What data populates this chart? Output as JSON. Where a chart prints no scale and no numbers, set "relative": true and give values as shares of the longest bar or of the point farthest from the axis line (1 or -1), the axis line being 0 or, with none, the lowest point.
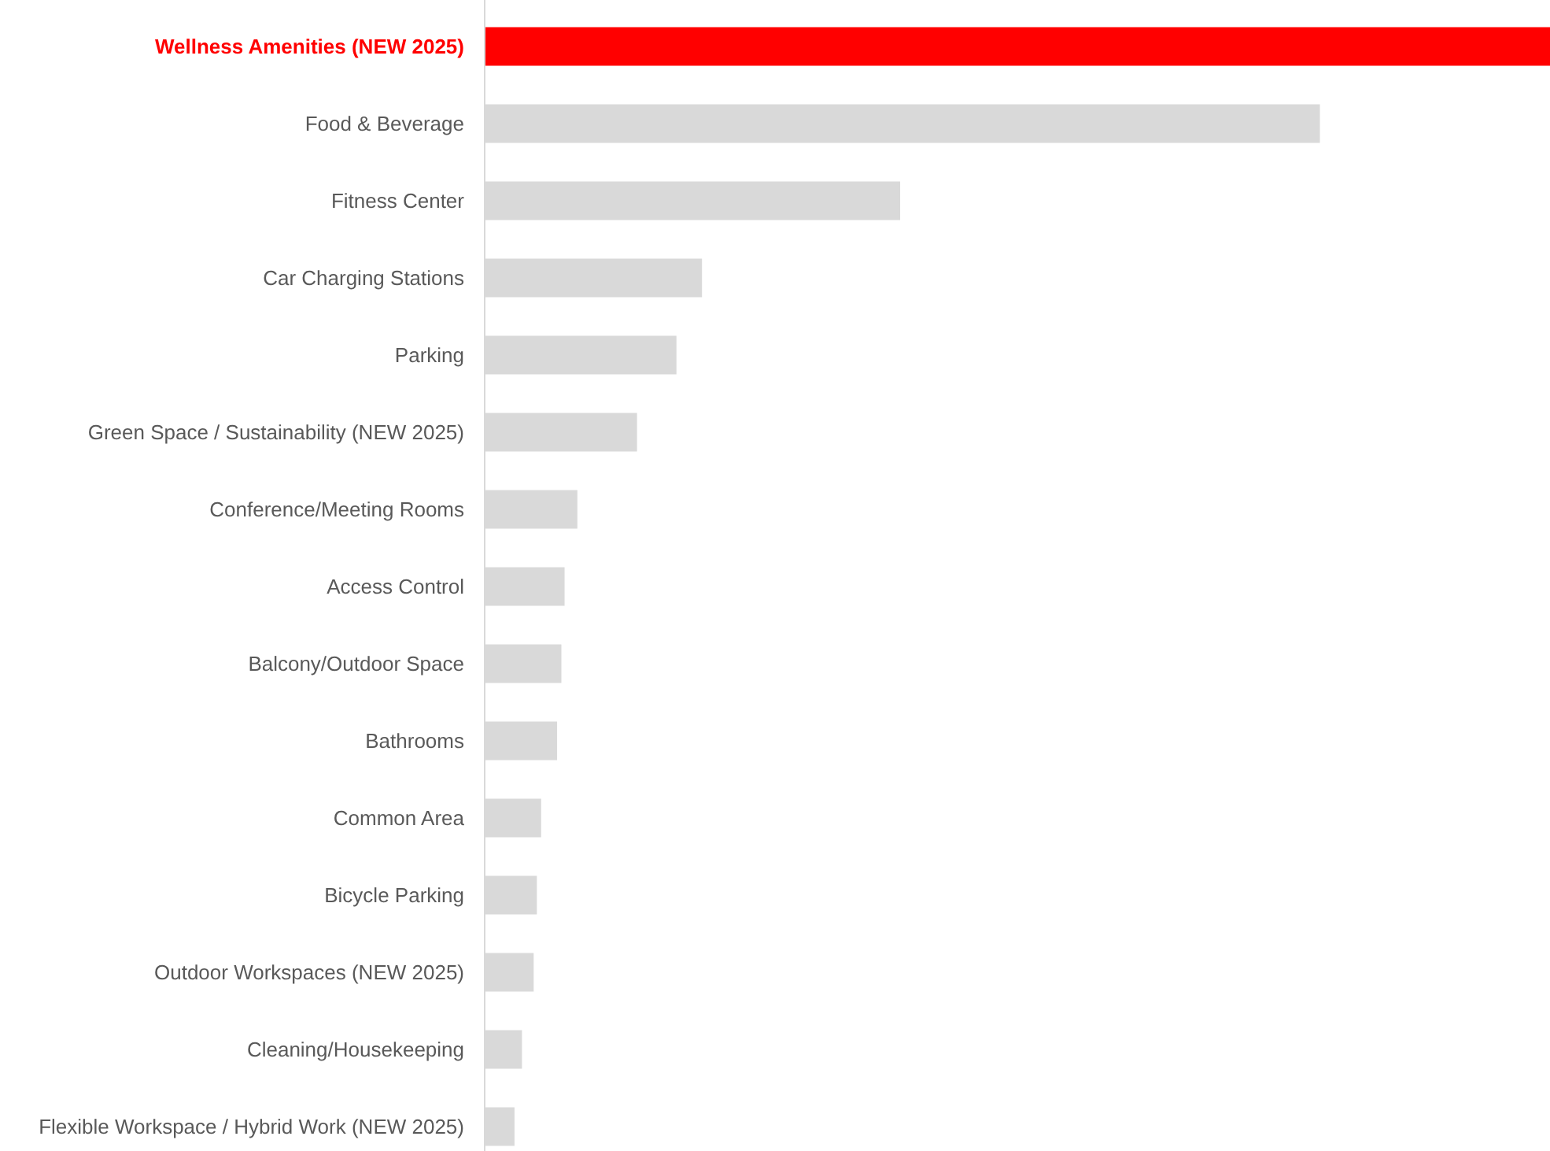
{
  "chart_data": {
    "type": "bar",
    "orientation": "horizontal",
    "relative": true,
    "categories": [
      "Wellness Amenities (NEW 2025)",
      "Food & Beverage",
      "Fitness Center",
      "Car Charging Stations",
      "Parking",
      "Green Space / Sustainability (NEW 2025)",
      "Conference/Meeting Rooms",
      "Access Control",
      "Balcony/Outdoor Space",
      "Bathrooms",
      "Common Area",
      "Bicycle Parking",
      "Outdoor Workspaces (NEW 2025)",
      "Cleaning/Housekeeping",
      "Flexible Workspace / Hybrid Work (NEW 2025)"
    ],
    "values": [
      1,
      0.784,
      0.39,
      0.204,
      0.18,
      0.143,
      0.087,
      0.075,
      0.072,
      0.068,
      0.053,
      0.049,
      0.046,
      0.035,
      0.028
    ],
    "color": "#d9d9d9",
    "colors": [
      "#ff0000",
      "#d9d9d9",
      "#d9d9d9",
      "#d9d9d9",
      "#d9d9d9",
      "#d9d9d9",
      "#d9d9d9",
      "#d9d9d9",
      "#d9d9d9",
      "#d9d9d9",
      "#d9d9d9",
      "#d9d9d9",
      "#d9d9d9",
      "#d9d9d9",
      "#d9d9d9"
    ]
  }
}
